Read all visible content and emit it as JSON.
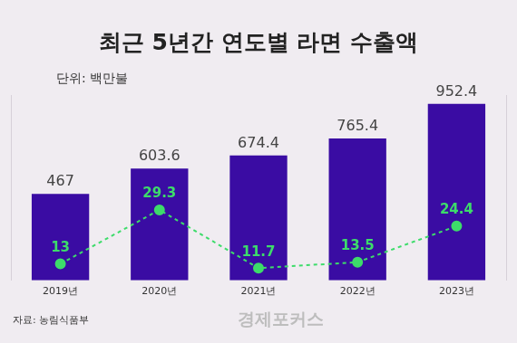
{
  "chart_data": {
    "type": "bar",
    "title": "최근 5년간 연도별 라면 수출액",
    "subtitle": "단위: 백만불",
    "source": "자료: 농림식품부",
    "credit": "경제포커스",
    "categories": [
      "2019년",
      "2020년",
      "2021년",
      "2022년",
      "2023년"
    ],
    "series": [
      {
        "type": "bar",
        "color": "#3a0ca3",
        "values": [
          467,
          603.6,
          674.4,
          765.4,
          952.4
        ]
      },
      {
        "type": "line",
        "color": "#3ddc6a",
        "line_style": "dashed",
        "marker": "circle",
        "axis": "y2",
        "values": [
          13,
          29.3,
          11.7,
          13.5,
          24.4
        ]
      }
    ],
    "ylim": [
      0,
      1000
    ],
    "y2lim": [
      8,
      64
    ],
    "grid": false,
    "data_labels": true,
    "tick_labels": "x"
  }
}
